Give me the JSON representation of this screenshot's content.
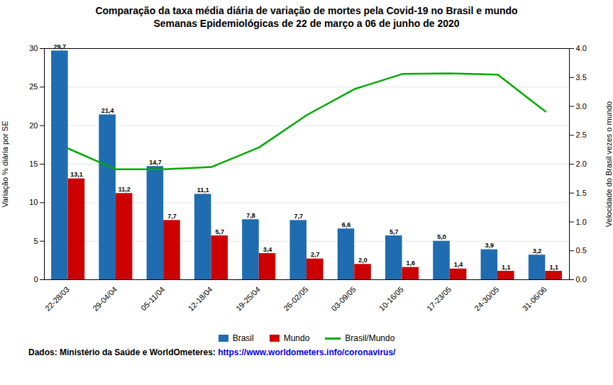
{
  "chart_data": {
    "type": "bar",
    "title": "Comparação da taxa média diária de variação de mortes pela Covid-19 no Brasil e mundo",
    "subtitle": "Semanas Epidemiológicas de 22 de março a 06 de junho de 2020",
    "categories": [
      "22-28/03",
      "29-04/04",
      "05-11/04",
      "12-18/04",
      "19-25/04",
      "26-02/05",
      "03-09/05",
      "10-16/05",
      "17-23/05",
      "24-30/05",
      "31-06/06"
    ],
    "series": [
      {
        "name": "Brasil",
        "type": "bar",
        "color": "#1F6CB0",
        "data_labels": true,
        "values": [
          29.7,
          21.4,
          14.7,
          11.1,
          7.8,
          7.7,
          6.6,
          5.7,
          5.0,
          3.9,
          3.2
        ],
        "value_labels": [
          "29,7",
          "21,4",
          "14,7",
          "11,1",
          "7,8",
          "7,7",
          "6,6",
          "5,7",
          "5,0",
          "3,9",
          "3,2"
        ]
      },
      {
        "name": "Mundo",
        "type": "bar",
        "color": "#CC0000",
        "data_labels": true,
        "values": [
          13.1,
          11.2,
          7.7,
          5.7,
          3.4,
          2.7,
          2.0,
          1.6,
          1.4,
          1.1,
          1.1
        ],
        "value_labels": [
          "13,1",
          "11,2",
          "7,7",
          "5,7",
          "3,4",
          "2,7",
          "2,0",
          "1,6",
          "1,4",
          "1,1",
          "1,1"
        ]
      },
      {
        "name": "Brasil/Mundo",
        "type": "line",
        "axis": "y2",
        "color": "#00AA00",
        "values": [
          2.27,
          1.91,
          1.91,
          1.95,
          2.29,
          2.85,
          3.3,
          3.56,
          3.57,
          3.55,
          2.91
        ]
      }
    ],
    "ylabel": "Variação % diária por SE",
    "y2label": "Velocidade do Brasil vezes o mundo",
    "ylim": [
      0,
      30
    ],
    "yticks": [
      0,
      5,
      10,
      15,
      20,
      25,
      30
    ],
    "y2lim": [
      0,
      4
    ],
    "y2ticks": [
      {
        "value": 0,
        "label": "0.0"
      },
      0.5,
      {
        "value": 1,
        "label": "1.0"
      },
      1.5,
      {
        "value": 2,
        "label": "2.0"
      },
      2.5,
      {
        "value": 3,
        "label": "3.0"
      },
      3.5,
      {
        "value": 4,
        "label": "4.0"
      }
    ],
    "grid": true,
    "legend": "bottom",
    "annotations": [
      {
        "text": "Dados: Ministério da Saúde e WorldOmeteres: ",
        "color": "black"
      },
      {
        "text": "https://www.worldometers.info/coronavirus/",
        "color": "blue"
      }
    ]
  }
}
